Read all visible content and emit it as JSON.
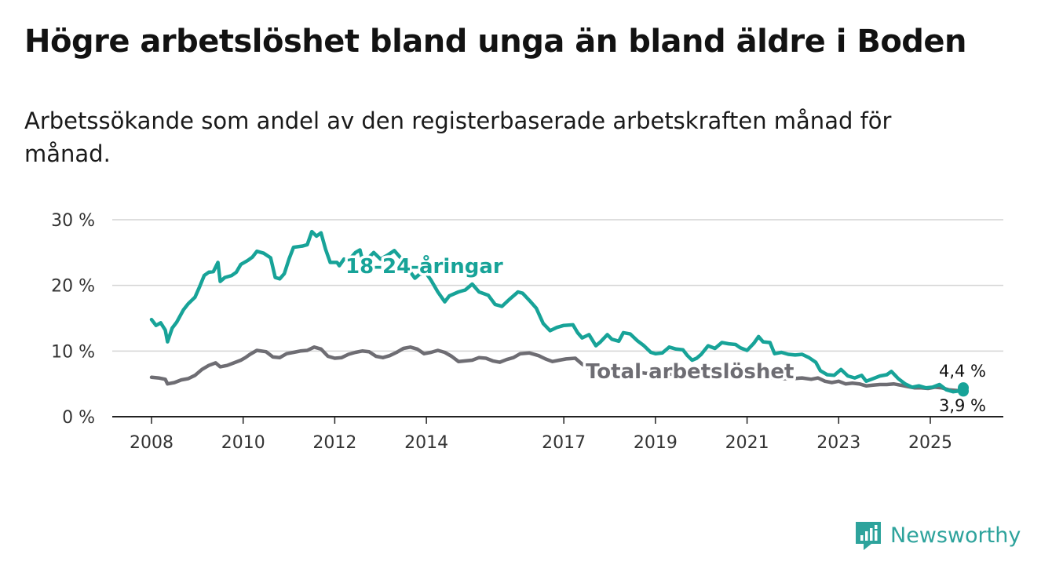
{
  "title": "Högre arbetslöshet bland unga än bland äldre i Boden",
  "subtitle": "Arbetssökande som andel av den registerbaserade arbetskraften månad för månad.",
  "brand": {
    "name": "Newsworthy",
    "color": "#2ea39c"
  },
  "colors": {
    "youth": "#17a398",
    "total": "#6e6d73",
    "grid": "#d4d4d4",
    "axis": "#222222"
  },
  "chart_data": {
    "type": "line",
    "title": "Högre arbetslöshet bland unga än bland äldre i Boden",
    "xlabel": "",
    "ylabel": "",
    "xlim": [
      2008,
      2026
    ],
    "ylim": [
      0,
      30
    ],
    "x_ticks": [
      2008,
      2010,
      2012,
      2014,
      2017,
      2019,
      2021,
      2023,
      2025
    ],
    "y_ticks": [
      {
        "value": 0,
        "label": "0 %"
      },
      {
        "value": 10,
        "label": "10 %"
      },
      {
        "value": 20,
        "label": "20 %"
      },
      {
        "value": 30,
        "label": "30 %"
      }
    ],
    "series": [
      {
        "name": "18-24-åringar",
        "label": "18-24-åringar",
        "color": "#17a398",
        "end_value_label": "4,4 %",
        "points": [
          [
            2008.0,
            14.8
          ],
          [
            2008.1,
            13.9
          ],
          [
            2008.2,
            14.3
          ],
          [
            2008.3,
            13.2
          ],
          [
            2008.35,
            11.4
          ],
          [
            2008.45,
            13.5
          ],
          [
            2008.55,
            14.4
          ],
          [
            2008.7,
            16.3
          ],
          [
            2008.8,
            17.2
          ],
          [
            2008.95,
            18.2
          ],
          [
            2009.05,
            19.8
          ],
          [
            2009.15,
            21.5
          ],
          [
            2009.25,
            22.0
          ],
          [
            2009.35,
            22.1
          ],
          [
            2009.45,
            23.5
          ],
          [
            2009.5,
            20.6
          ],
          [
            2009.6,
            21.2
          ],
          [
            2009.75,
            21.5
          ],
          [
            2009.85,
            22.0
          ],
          [
            2009.95,
            23.2
          ],
          [
            2010.1,
            23.8
          ],
          [
            2010.2,
            24.3
          ],
          [
            2010.3,
            25.2
          ],
          [
            2010.45,
            24.9
          ],
          [
            2010.6,
            24.2
          ],
          [
            2010.7,
            21.2
          ],
          [
            2010.8,
            21.0
          ],
          [
            2010.9,
            21.8
          ],
          [
            2011.0,
            24.0
          ],
          [
            2011.1,
            25.8
          ],
          [
            2011.3,
            26.0
          ],
          [
            2011.4,
            26.2
          ],
          [
            2011.5,
            28.2
          ],
          [
            2011.6,
            27.5
          ],
          [
            2011.7,
            28.0
          ],
          [
            2011.8,
            25.5
          ],
          [
            2011.9,
            23.5
          ],
          [
            2012.05,
            23.5
          ],
          [
            2012.1,
            23.0
          ],
          [
            2012.2,
            24.0
          ],
          [
            2012.3,
            23.8
          ],
          [
            2012.45,
            25.0
          ],
          [
            2012.55,
            25.4
          ],
          [
            2012.6,
            24.0
          ],
          [
            2012.75,
            24.3
          ],
          [
            2012.85,
            25.0
          ],
          [
            2013.0,
            24.0
          ],
          [
            2013.15,
            24.6
          ],
          [
            2013.3,
            25.3
          ],
          [
            2013.45,
            24.1
          ],
          [
            2013.6,
            22.5
          ],
          [
            2013.75,
            21.1
          ],
          [
            2013.85,
            21.7
          ],
          [
            2014.0,
            21.8
          ],
          [
            2014.1,
            20.8
          ],
          [
            2014.25,
            19.0
          ],
          [
            2014.4,
            17.5
          ],
          [
            2014.5,
            18.4
          ],
          [
            2014.7,
            19.0
          ],
          [
            2014.85,
            19.3
          ],
          [
            2015.0,
            20.2
          ],
          [
            2015.15,
            19.0
          ],
          [
            2015.35,
            18.5
          ],
          [
            2015.5,
            17.1
          ],
          [
            2015.65,
            16.8
          ],
          [
            2015.8,
            17.8
          ],
          [
            2016.0,
            19.0
          ],
          [
            2016.1,
            18.8
          ],
          [
            2016.25,
            17.7
          ],
          [
            2016.4,
            16.5
          ],
          [
            2016.55,
            14.2
          ],
          [
            2016.7,
            13.1
          ],
          [
            2016.85,
            13.6
          ],
          [
            2017.0,
            13.9
          ],
          [
            2017.2,
            14.0
          ],
          [
            2017.3,
            12.8
          ],
          [
            2017.4,
            12.0
          ],
          [
            2017.55,
            12.5
          ],
          [
            2017.7,
            10.8
          ],
          [
            2017.8,
            11.4
          ],
          [
            2017.95,
            12.5
          ],
          [
            2018.05,
            11.8
          ],
          [
            2018.2,
            11.5
          ],
          [
            2018.3,
            12.8
          ],
          [
            2018.45,
            12.6
          ],
          [
            2018.6,
            11.6
          ],
          [
            2018.75,
            10.8
          ],
          [
            2018.9,
            9.8
          ],
          [
            2019.0,
            9.6
          ],
          [
            2019.15,
            9.7
          ],
          [
            2019.3,
            10.6
          ],
          [
            2019.45,
            10.3
          ],
          [
            2019.6,
            10.2
          ],
          [
            2019.7,
            9.3
          ],
          [
            2019.8,
            8.6
          ],
          [
            2019.9,
            8.9
          ],
          [
            2020.0,
            9.5
          ],
          [
            2020.15,
            10.8
          ],
          [
            2020.3,
            10.4
          ],
          [
            2020.45,
            11.3
          ],
          [
            2020.6,
            11.1
          ],
          [
            2020.75,
            11.0
          ],
          [
            2020.85,
            10.5
          ],
          [
            2021.0,
            10.1
          ],
          [
            2021.15,
            11.2
          ],
          [
            2021.25,
            12.2
          ],
          [
            2021.35,
            11.4
          ],
          [
            2021.5,
            11.3
          ],
          [
            2021.6,
            9.6
          ],
          [
            2021.75,
            9.8
          ],
          [
            2021.9,
            9.5
          ],
          [
            2022.05,
            9.4
          ],
          [
            2022.2,
            9.5
          ],
          [
            2022.35,
            9.0
          ],
          [
            2022.5,
            8.3
          ],
          [
            2022.6,
            7.0
          ],
          [
            2022.75,
            6.4
          ],
          [
            2022.9,
            6.3
          ],
          [
            2023.05,
            7.2
          ],
          [
            2023.2,
            6.2
          ],
          [
            2023.35,
            5.9
          ],
          [
            2023.5,
            6.3
          ],
          [
            2023.6,
            5.4
          ],
          [
            2023.75,
            5.8
          ],
          [
            2023.9,
            6.2
          ],
          [
            2024.05,
            6.4
          ],
          [
            2024.15,
            6.9
          ],
          [
            2024.3,
            5.8
          ],
          [
            2024.45,
            5.0
          ],
          [
            2024.6,
            4.5
          ],
          [
            2024.75,
            4.7
          ],
          [
            2024.9,
            4.4
          ],
          [
            2025.05,
            4.5
          ],
          [
            2025.2,
            4.9
          ],
          [
            2025.35,
            4.1
          ],
          [
            2025.5,
            3.8
          ],
          [
            2025.6,
            3.9
          ],
          [
            2025.72,
            4.4
          ]
        ]
      },
      {
        "name": "Total arbetslöshet",
        "label": "Total arbetslöshet",
        "color": "#6e6d73",
        "end_value_label": "3,9 %",
        "points": [
          [
            2008.0,
            6.0
          ],
          [
            2008.15,
            5.9
          ],
          [
            2008.3,
            5.7
          ],
          [
            2008.35,
            5.0
          ],
          [
            2008.5,
            5.2
          ],
          [
            2008.65,
            5.6
          ],
          [
            2008.8,
            5.8
          ],
          [
            2008.95,
            6.3
          ],
          [
            2009.1,
            7.2
          ],
          [
            2009.25,
            7.8
          ],
          [
            2009.4,
            8.2
          ],
          [
            2009.5,
            7.6
          ],
          [
            2009.65,
            7.8
          ],
          [
            2009.8,
            8.2
          ],
          [
            2009.95,
            8.6
          ],
          [
            2010.05,
            9.0
          ],
          [
            2010.15,
            9.5
          ],
          [
            2010.3,
            10.1
          ],
          [
            2010.5,
            9.9
          ],
          [
            2010.65,
            9.1
          ],
          [
            2010.8,
            9.0
          ],
          [
            2010.95,
            9.6
          ],
          [
            2011.1,
            9.8
          ],
          [
            2011.25,
            10.0
          ],
          [
            2011.4,
            10.1
          ],
          [
            2011.55,
            10.6
          ],
          [
            2011.7,
            10.3
          ],
          [
            2011.85,
            9.2
          ],
          [
            2012.0,
            8.9
          ],
          [
            2012.15,
            9.0
          ],
          [
            2012.3,
            9.5
          ],
          [
            2012.45,
            9.8
          ],
          [
            2012.6,
            10.0
          ],
          [
            2012.75,
            9.9
          ],
          [
            2012.9,
            9.2
          ],
          [
            2013.05,
            9.0
          ],
          [
            2013.2,
            9.3
          ],
          [
            2013.35,
            9.8
          ],
          [
            2013.5,
            10.4
          ],
          [
            2013.65,
            10.6
          ],
          [
            2013.8,
            10.3
          ],
          [
            2013.95,
            9.6
          ],
          [
            2014.1,
            9.8
          ],
          [
            2014.25,
            10.1
          ],
          [
            2014.4,
            9.8
          ],
          [
            2014.55,
            9.2
          ],
          [
            2014.7,
            8.4
          ],
          [
            2014.85,
            8.5
          ],
          [
            2015.0,
            8.6
          ],
          [
            2015.15,
            9.0
          ],
          [
            2015.3,
            8.9
          ],
          [
            2015.45,
            8.5
          ],
          [
            2015.6,
            8.3
          ],
          [
            2015.75,
            8.7
          ],
          [
            2015.9,
            9.0
          ],
          [
            2016.05,
            9.6
          ],
          [
            2016.25,
            9.7
          ],
          [
            2016.45,
            9.3
          ],
          [
            2016.6,
            8.8
          ],
          [
            2016.75,
            8.4
          ],
          [
            2016.9,
            8.6
          ],
          [
            2017.05,
            8.8
          ],
          [
            2017.25,
            8.9
          ],
          [
            2017.4,
            8.0
          ],
          [
            2017.55,
            7.4
          ],
          [
            2017.7,
            7.4
          ],
          [
            2017.85,
            7.4
          ],
          [
            2018.0,
            7.2
          ],
          [
            2018.2,
            7.0
          ],
          [
            2018.4,
            7.0
          ],
          [
            2018.6,
            6.8
          ],
          [
            2018.8,
            6.6
          ],
          [
            2019.0,
            6.6
          ],
          [
            2019.2,
            6.5
          ],
          [
            2019.4,
            6.5
          ],
          [
            2019.6,
            6.4
          ],
          [
            2019.8,
            6.2
          ],
          [
            2020.0,
            6.1
          ],
          [
            2020.2,
            6.1
          ],
          [
            2020.4,
            6.0
          ],
          [
            2020.6,
            6.0
          ],
          [
            2020.8,
            6.0
          ],
          [
            2021.0,
            6.0
          ],
          [
            2021.2,
            6.2
          ],
          [
            2021.4,
            6.0
          ],
          [
            2021.6,
            5.9
          ],
          [
            2021.8,
            5.8
          ],
          [
            2022.0,
            5.8
          ],
          [
            2022.2,
            5.9
          ],
          [
            2022.4,
            5.7
          ],
          [
            2022.55,
            5.9
          ],
          [
            2022.7,
            5.4
          ],
          [
            2022.85,
            5.2
          ],
          [
            2023.0,
            5.4
          ],
          [
            2023.15,
            5.0
          ],
          [
            2023.3,
            5.1
          ],
          [
            2023.45,
            5.0
          ],
          [
            2023.6,
            4.7
          ],
          [
            2023.75,
            4.8
          ],
          [
            2023.9,
            4.9
          ],
          [
            2024.05,
            4.9
          ],
          [
            2024.2,
            5.0
          ],
          [
            2024.35,
            4.8
          ],
          [
            2024.5,
            4.6
          ],
          [
            2024.65,
            4.4
          ],
          [
            2024.8,
            4.4
          ],
          [
            2024.95,
            4.3
          ],
          [
            2025.1,
            4.5
          ],
          [
            2025.25,
            4.4
          ],
          [
            2025.4,
            4.1
          ],
          [
            2025.55,
            4.0
          ],
          [
            2025.72,
            3.9
          ]
        ]
      }
    ],
    "annotations": [
      {
        "text": "18-24-åringar",
        "series": "18-24-åringar"
      },
      {
        "text": "Total arbetslöshet",
        "series": "Total arbetslöshet"
      },
      {
        "text": "4,4 %",
        "series": "18-24-åringar",
        "value": 4.4
      },
      {
        "text": "3,9 %",
        "series": "Total arbetslöshet",
        "value": 3.9
      }
    ]
  }
}
